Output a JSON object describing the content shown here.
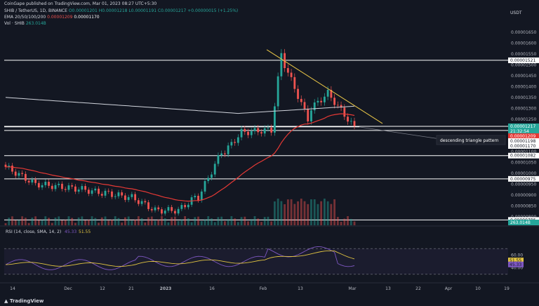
{
  "header": {
    "published": "CoinGape published on TradingView.com, Mar 01, 2023 08:27 UTC+5:30",
    "symbol_line": "SHIB / TetherUS, 1D, BINANCE",
    "ohlc": "O0.00001201  H0.00001218  L0.00001191  C0.00001217  +0.00000015 (+1.25%)",
    "ema_label": "EMA 20/50/100/200",
    "ema_vals": [
      "0.00001209",
      "0.00001170"
    ],
    "vol_label": "Vol · SHIB",
    "vol_val": "263.014B",
    "currency": "USDT",
    "watermark": "TradingView"
  },
  "annotation": "descending triangle pattern",
  "colors": {
    "up": "#26a69a",
    "down": "#ef5350",
    "ema50": "#e53935",
    "ema200": "#d1d4dc",
    "trend": "#e8c547",
    "rsi": "#7e57c2",
    "rsi_ma": "#e0c341"
  },
  "chart_data": {
    "type": "candlestick",
    "price_ticks": [
      "0.00001650",
      "0.00001600",
      "0.00001550",
      "0.00001500",
      "0.00001450",
      "0.00001400",
      "0.00001350",
      "0.00001300",
      "0.00001250",
      "0.00001150",
      "0.00001100",
      "0.00001050",
      "0.00001000",
      "0.00000950",
      "0.00000900",
      "0.00000850",
      "0.00000800"
    ],
    "level_labels": [
      {
        "price": 1.521e-05,
        "text": "0.00001521",
        "bg": "#ffffff",
        "fg": "#131722"
      },
      {
        "price": 1.217e-05,
        "text": "0.00001217",
        "bg": "#26a69a",
        "fg": "#ffffff"
      },
      {
        "price": 1.2e-05,
        "text": "21:32:54",
        "bg": "#26a69a",
        "fg": "#ffffff"
      },
      {
        "price": 1.209e-05,
        "text": "0.00001209",
        "bg": "#e53935",
        "fg": "#ffffff"
      },
      {
        "price": 1.198e-05,
        "text": "0.00001198",
        "bg": "#ffffff",
        "fg": "#131722"
      },
      {
        "price": 1.17e-05,
        "text": "0.00001170",
        "bg": "#ffffff",
        "fg": "#131722"
      },
      {
        "price": 1.082e-05,
        "text": "0.00001082",
        "bg": "#ffffff",
        "fg": "#131722"
      },
      {
        "price": 9.75e-06,
        "text": "0.00000975",
        "bg": "#ffffff",
        "fg": "#131722"
      },
      {
        "price": 7.86e-06,
        "text": "0.00000786",
        "bg": "#ffffff",
        "fg": "#131722"
      }
    ],
    "horizontal_levels": [
      1.521e-05,
      1.217e-05,
      1.198e-05,
      1.082e-05,
      9.75e-06,
      7.86e-06
    ],
    "x_labels": [
      "14",
      "Dec",
      "12",
      "21",
      "2023",
      "16",
      "Feb",
      "13",
      "Mar",
      "13",
      "22",
      "Apr",
      "10",
      "19"
    ],
    "trendline": {
      "from": 1.57e-05,
      "to": 1.23e-05
    },
    "vol_badge": "263.014B",
    "rsi": {
      "label": "RSI (14, close, SMA, 14, 2)",
      "values_text": [
        "45.33",
        "51.55"
      ],
      "ticks": [
        "60.00",
        "40.00"
      ],
      "badges": [
        {
          "v": 51.55,
          "text": "51.55",
          "bg": "#e0c341"
        },
        {
          "v": 45.33,
          "text": "45.33",
          "bg": "#7e57c2"
        }
      ],
      "band": [
        30,
        70
      ]
    }
  }
}
